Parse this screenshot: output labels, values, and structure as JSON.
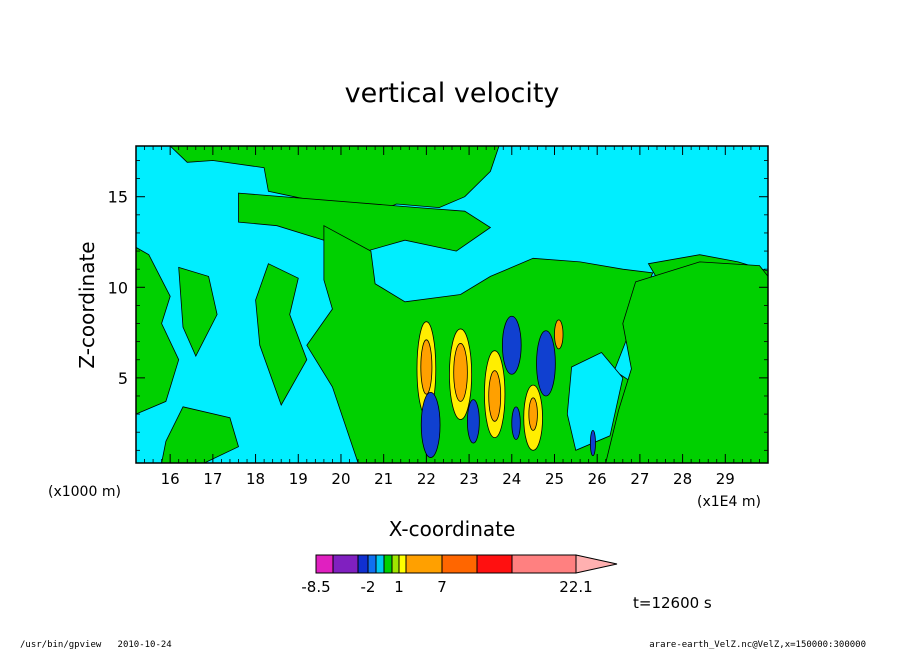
{
  "chart_data": {
    "type": "heatmap",
    "title": "vertical velocity",
    "xlabel": "X-coordinate",
    "ylabel": "Z-coordinate",
    "x_unit": "(x1E4 m)",
    "y_unit": "(x1000 m)",
    "xlim": [
      15.2,
      30.0
    ],
    "ylim": [
      0.3,
      17.8
    ],
    "x_ticks": [
      16,
      17,
      18,
      19,
      20,
      21,
      22,
      23,
      24,
      25,
      26,
      27,
      28,
      29
    ],
    "y_ticks": [
      5,
      10,
      15
    ],
    "x_tick_labels": [
      "16",
      "17",
      "18",
      "19",
      "20",
      "21",
      "22",
      "23",
      "24",
      "25",
      "26",
      "27",
      "28",
      "29"
    ],
    "y_tick_labels": [
      "5",
      "10",
      "15"
    ],
    "colorbar": {
      "colors": [
        "#e020c0",
        "#8020c0",
        "#1030d0",
        "#1070f0",
        "#00c8f0",
        "#00d000",
        "#a0e600",
        "#ffff00",
        "#ffa000",
        "#ff6600",
        "#ff1010",
        "#ff8080",
        "#ffb0b0"
      ],
      "tick_labels": [
        "-8.5",
        "-2",
        "1",
        "7",
        "22.1"
      ]
    },
    "regions": [
      {
        "value": "background",
        "color": "#00eeff"
      },
      {
        "value": "positive weak",
        "color": "#00d000"
      },
      {
        "value": "positive moderate",
        "color": "#ffee00"
      },
      {
        "value": "positive strong",
        "color": "#ffa000"
      },
      {
        "value": "negative moderate",
        "color": "#1040d0"
      }
    ],
    "time_label": "t=12600 s"
  },
  "footer": {
    "left": "/usr/bin/gpview   2010-10-24",
    "right": "arare-earth_VelZ.nc@VelZ,x=150000:300000"
  }
}
